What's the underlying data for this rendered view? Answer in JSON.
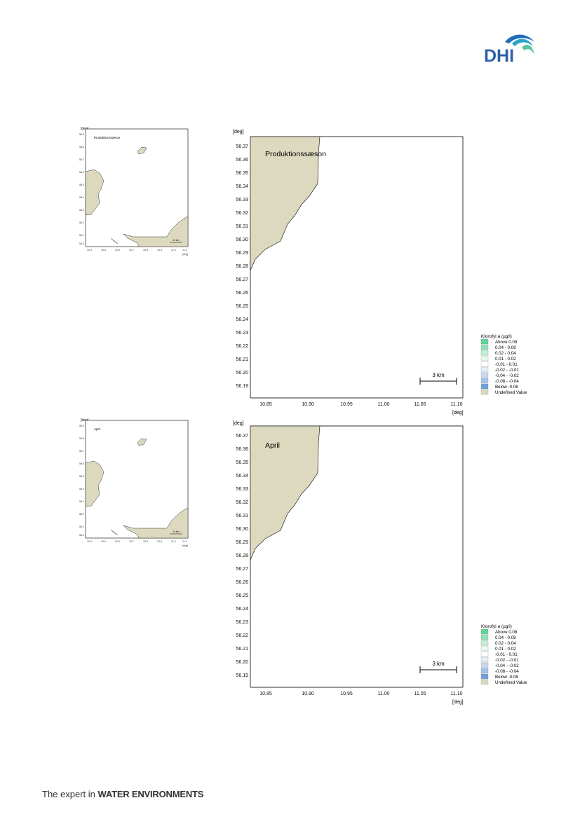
{
  "brand": {
    "logo_text": "DHI",
    "tagline_light": "The expert in ",
    "tagline_bold": "WATER ENVIRONMENTS",
    "colors": {
      "logo_text": "#2d5fa6",
      "wave_dark": "#1f6fb8",
      "wave_mid": "#27a3c9",
      "wave_green": "#5cc49a"
    }
  },
  "colors": {
    "land": "#dcd9bf",
    "water": "#ffffff",
    "frame": "#000000"
  },
  "legend": {
    "title": "Klorofyl a (µg/l)",
    "items": [
      {
        "label": "Above  0.08",
        "color": "#5fd59a"
      },
      {
        "label": "0.04 -  0.08",
        "color": "#8fe2b6"
      },
      {
        "label": "0.02 -  0.04",
        "color": "#c2efd5"
      },
      {
        "label": "0.01 -  0.02",
        "color": "#eaf9f0"
      },
      {
        "label": "-0.01 -  0.01",
        "color": "#ffffff"
      },
      {
        "label": "-0.02 - -0.01",
        "color": "#e4edf8"
      },
      {
        "label": "-0.04 - -0.02",
        "color": "#c6d9f1"
      },
      {
        "label": "-0.08 - -0.04",
        "color": "#a3c3ea"
      },
      {
        "label": "Below -0.08",
        "color": "#6e9fdc"
      },
      {
        "label": "Undefined Value",
        "color": "#dcd9bf"
      }
    ]
  },
  "maps": [
    {
      "period_label": "Produktionssæson",
      "axis_unit": "[deg]",
      "x_ticks": [
        "10.85",
        "10.90",
        "10.95",
        "11.00",
        "11.05",
        "11.10"
      ],
      "y_ticks": [
        "56.37",
        "56.36",
        "56.35",
        "56.34",
        "56.33",
        "56.32",
        "56.31",
        "56.30",
        "56.29",
        "56.28",
        "56.27",
        "56.26",
        "56.25",
        "56.24",
        "56.23",
        "56.22",
        "56.21",
        "56.20",
        "56.19"
      ],
      "scale_bar": "3 km",
      "overview": {
        "period_label": "Produktionssæson",
        "unit": "[deg]",
        "scale_bar": "10 km",
        "y_ticks": [
          "56.9",
          "56.8",
          "56.7",
          "56.6",
          "56.5",
          "56.4",
          "56.3",
          "56.2",
          "56.1",
          "56.0"
        ],
        "x_ticks": [
          "10.4",
          "10.5",
          "10.6",
          "10.7",
          "10.8",
          "10.9",
          "11.0",
          "11.1"
        ]
      }
    },
    {
      "period_label": "April",
      "axis_unit": "[deg]",
      "x_ticks": [
        "10.85",
        "10.90",
        "10.95",
        "11.00",
        "11.05",
        "11.10"
      ],
      "y_ticks": [
        "56.37",
        "56.36",
        "56.35",
        "56.34",
        "56.33",
        "56.32",
        "56.31",
        "56.30",
        "56.29",
        "56.28",
        "56.27",
        "56.26",
        "56.25",
        "56.24",
        "56.23",
        "56.22",
        "56.21",
        "56.20",
        "56.19"
      ],
      "scale_bar": "3 km",
      "overview": {
        "period_label": "April",
        "unit": "[deg]",
        "scale_bar": "10 km",
        "y_ticks": [
          "56.9",
          "56.8",
          "56.7",
          "56.6",
          "56.5",
          "56.4",
          "56.3",
          "56.2",
          "56.1",
          "56.0"
        ],
        "x_ticks": [
          "10.4",
          "10.5",
          "10.6",
          "10.7",
          "10.8",
          "10.9",
          "11.0",
          "11.1"
        ]
      }
    }
  ]
}
